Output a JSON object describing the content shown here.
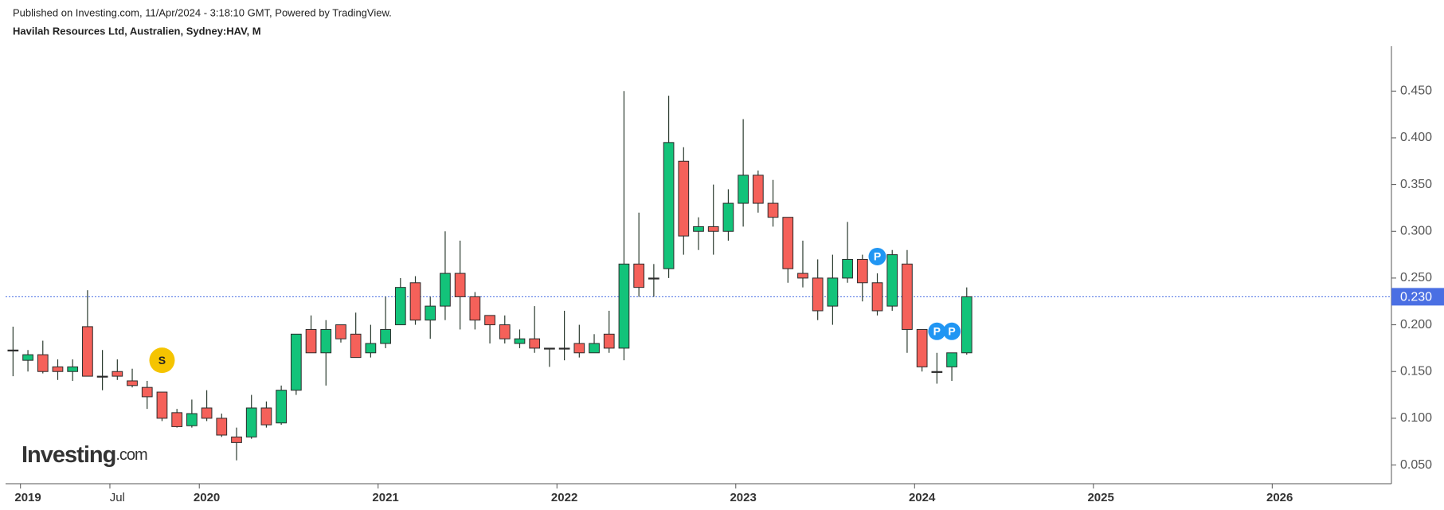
{
  "header": {
    "published": "Published on Investing.com, 11/Apr/2024 - 3:18:10 GMT, Powered by TradingView.",
    "symbol": "Havilah Resources Ltd, Australien, Sydney:HAV, M"
  },
  "logo": {
    "brand": "Investing",
    "suffix": ".com"
  },
  "chart_data": {
    "type": "candlestick",
    "categories": [
      null,
      "2019",
      null,
      null,
      null,
      null,
      null,
      "Jul",
      null,
      null,
      null,
      null,
      null,
      "2020",
      null,
      null,
      null,
      null,
      null,
      null,
      null,
      null,
      null,
      null,
      null,
      "2021",
      null,
      null,
      null,
      null,
      null,
      null,
      null,
      null,
      null,
      null,
      null,
      "2022",
      null,
      null,
      null,
      null,
      null,
      null,
      null,
      null,
      null,
      null,
      null,
      "2023",
      null,
      null,
      null,
      null,
      null,
      null,
      null,
      null,
      null,
      null,
      null,
      "2024",
      null,
      null,
      null,
      null,
      null,
      null,
      null,
      null,
      null,
      null,
      null,
      "2025",
      null,
      null,
      null,
      null,
      null,
      null,
      null,
      null,
      null,
      null,
      null,
      "2026",
      null,
      null,
      null,
      null,
      null,
      null,
      null
    ],
    "open": [
      0.173,
      0.162,
      0.168,
      0.155,
      0.15,
      0.198,
      0.145,
      0.15,
      0.14,
      0.133,
      0.128,
      0.106,
      0.092,
      0.111,
      0.1,
      0.08,
      0.08,
      0.111,
      0.095,
      0.13,
      0.195,
      0.17,
      0.2,
      0.19,
      0.17,
      0.18,
      0.2,
      0.245,
      0.205,
      0.22,
      0.255,
      0.23,
      0.21,
      0.2,
      0.18,
      0.185,
      0.175,
      0.175,
      0.18,
      0.17,
      0.19,
      0.175,
      0.265,
      0.25,
      0.26,
      0.375,
      0.3,
      0.305,
      0.3,
      0.33,
      0.36,
      0.33,
      0.315,
      0.255,
      0.25,
      0.22,
      0.25,
      0.27,
      0.245,
      0.22,
      0.265,
      0.195,
      0.15,
      0.155,
      0.17,
      null,
      null,
      null,
      null,
      null,
      null,
      null,
      null,
      null,
      null,
      null,
      null,
      null,
      null,
      null,
      null,
      null,
      null,
      null,
      null,
      null,
      null,
      null,
      null,
      null,
      null,
      null,
      null
    ],
    "high": [
      0.198,
      0.173,
      0.183,
      0.163,
      0.163,
      0.237,
      0.173,
      0.163,
      0.153,
      0.14,
      0.128,
      0.11,
      0.12,
      0.13,
      0.105,
      0.09,
      0.125,
      0.118,
      0.135,
      0.19,
      0.21,
      0.205,
      0.2,
      0.213,
      0.2,
      0.23,
      0.25,
      0.252,
      0.23,
      0.3,
      0.29,
      0.235,
      0.21,
      0.21,
      0.195,
      0.22,
      0.175,
      0.215,
      0.2,
      0.19,
      0.215,
      0.45,
      0.32,
      0.265,
      0.445,
      0.39,
      0.315,
      0.35,
      0.345,
      0.42,
      0.365,
      0.355,
      0.315,
      0.29,
      0.27,
      0.275,
      0.31,
      0.275,
      0.255,
      0.28,
      0.28,
      0.195,
      0.17,
      0.17,
      0.24,
      null,
      null,
      null,
      null,
      null,
      null,
      null,
      null,
      null,
      null,
      null,
      null,
      null,
      null,
      null,
      null,
      null,
      null,
      null,
      null,
      null,
      null,
      null,
      null,
      null,
      null,
      null,
      null
    ],
    "low": [
      0.145,
      0.15,
      0.148,
      0.141,
      0.14,
      0.145,
      0.13,
      0.141,
      0.133,
      0.11,
      0.097,
      0.09,
      0.09,
      0.097,
      0.08,
      0.055,
      0.078,
      0.09,
      0.093,
      0.125,
      0.17,
      0.135,
      0.181,
      0.165,
      0.165,
      0.175,
      0.2,
      0.2,
      0.185,
      0.205,
      0.195,
      0.195,
      0.18,
      0.18,
      0.175,
      0.17,
      0.155,
      0.162,
      0.165,
      0.17,
      0.17,
      0.162,
      0.23,
      0.23,
      0.25,
      0.275,
      0.28,
      0.275,
      0.29,
      0.305,
      0.32,
      0.305,
      0.245,
      0.24,
      0.205,
      0.2,
      0.245,
      0.225,
      0.21,
      0.215,
      0.17,
      0.15,
      0.137,
      0.14,
      0.168,
      null,
      null,
      null,
      null,
      null,
      null,
      null,
      null,
      null,
      null,
      null,
      null,
      null,
      null,
      null,
      null,
      null,
      null,
      null,
      null,
      null,
      null,
      null,
      null,
      null,
      null,
      null,
      null
    ],
    "close": [
      0.173,
      0.168,
      0.15,
      0.15,
      0.155,
      0.145,
      0.145,
      0.145,
      0.135,
      0.123,
      0.1,
      0.091,
      0.105,
      0.1,
      0.082,
      0.074,
      0.111,
      0.093,
      0.13,
      0.19,
      0.17,
      0.195,
      0.185,
      0.165,
      0.18,
      0.195,
      0.24,
      0.205,
      0.22,
      0.255,
      0.23,
      0.205,
      0.2,
      0.185,
      0.185,
      0.175,
      0.175,
      0.175,
      0.17,
      0.18,
      0.175,
      0.265,
      0.24,
      0.25,
      0.395,
      0.295,
      0.305,
      0.3,
      0.33,
      0.36,
      0.33,
      0.315,
      0.26,
      0.25,
      0.215,
      0.25,
      0.27,
      0.245,
      0.215,
      0.275,
      0.195,
      0.155,
      0.15,
      0.17,
      0.23,
      null,
      null,
      null,
      null,
      null,
      null,
      null,
      null,
      null,
      null,
      null,
      null,
      null,
      null,
      null,
      null,
      null,
      null,
      null,
      null,
      null,
      null,
      null,
      null,
      null,
      null,
      null,
      null
    ],
    "up_color": "#13c37a",
    "down_color": "#f5615a",
    "ylim": [
      0.03,
      0.498
    ],
    "yticks": [
      {
        "value": 0.05,
        "label": "0.050"
      },
      {
        "value": 0.1,
        "label": "0.100"
      },
      {
        "value": 0.15,
        "label": "0.150"
      },
      {
        "value": 0.2,
        "label": "0.200"
      },
      {
        "value": 0.25,
        "label": "0.250"
      },
      {
        "value": 0.3,
        "label": "0.300"
      },
      {
        "value": 0.35,
        "label": "0.350"
      },
      {
        "value": 0.4,
        "label": "0.400"
      },
      {
        "value": 0.45,
        "label": "0.450"
      }
    ],
    "last_price": {
      "value": 0.23,
      "label": "0.230",
      "color": "#4a6fe3"
    },
    "annotations": [
      {
        "text": "S",
        "index": 10,
        "value": 0.162,
        "color": "#f5c400"
      },
      {
        "text": "P",
        "index": 58,
        "value": 0.273,
        "color": "#2196f3"
      },
      {
        "text": "P",
        "index": 62,
        "value": 0.193,
        "color": "#2196f3"
      },
      {
        "text": "P",
        "index": 63,
        "value": 0.193,
        "color": "#2196f3"
      }
    ]
  }
}
